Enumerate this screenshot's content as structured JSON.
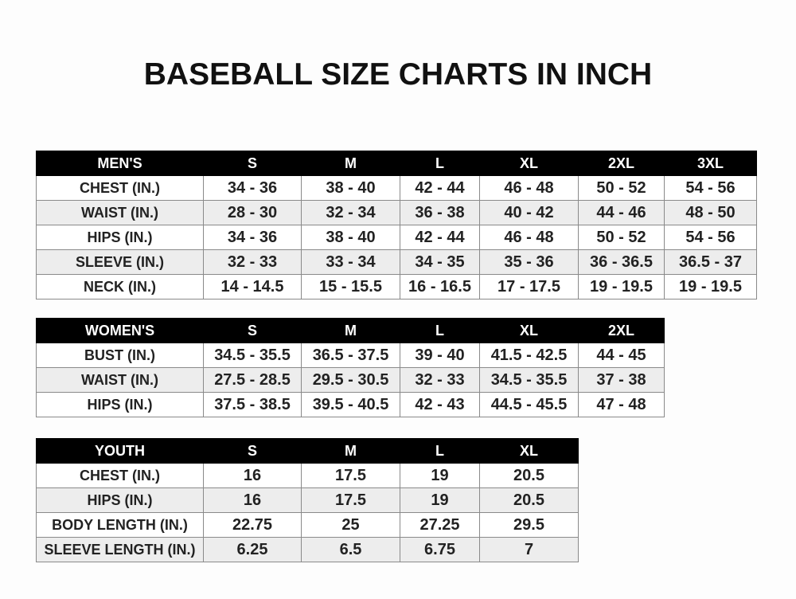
{
  "title": "BASEBALL SIZE CHARTS IN INCH",
  "tables": [
    {
      "header": [
        "MEN'S",
        "S",
        "M",
        "L",
        "XL",
        "2XL",
        "3XL"
      ],
      "rows": [
        [
          "CHEST (IN.)",
          "34 - 36",
          "38 - 40",
          "42 - 44",
          "46 - 48",
          "50 - 52",
          "54 - 56"
        ],
        [
          "WAIST (IN.)",
          "28 - 30",
          "32 - 34",
          "36 - 38",
          "40 - 42",
          "44 - 46",
          "48 - 50"
        ],
        [
          "HIPS (IN.)",
          "34 - 36",
          "38 - 40",
          "42 - 44",
          "46 - 48",
          "50 - 52",
          "54 - 56"
        ],
        [
          "SLEEVE (IN.)",
          "32 - 33",
          "33 - 34",
          "34 - 35",
          "35 - 36",
          "36 - 36.5",
          "36.5 - 37"
        ],
        [
          "NECK (IN.)",
          "14 - 14.5",
          "15 - 15.5",
          "16 - 16.5",
          "17 - 17.5",
          "19 - 19.5",
          "19 - 19.5"
        ]
      ]
    },
    {
      "header": [
        "WOMEN'S",
        "S",
        "M",
        "L",
        "XL",
        "2XL"
      ],
      "rows": [
        [
          "BUST (IN.)",
          "34.5 - 35.5",
          "36.5 - 37.5",
          "39 - 40",
          "41.5 - 42.5",
          "44 - 45"
        ],
        [
          "WAIST (IN.)",
          "27.5 - 28.5",
          "29.5 - 30.5",
          "32 - 33",
          "34.5 - 35.5",
          "37 - 38"
        ],
        [
          "HIPS (IN.)",
          "37.5 - 38.5",
          "39.5 - 40.5",
          "42 - 43",
          "44.5 - 45.5",
          "47 - 48"
        ]
      ]
    },
    {
      "header": [
        "YOUTH",
        "S",
        "M",
        "L",
        "XL"
      ],
      "rows": [
        [
          "CHEST (IN.)",
          "16",
          "17.5",
          "19",
          "20.5"
        ],
        [
          "HIPS (IN.)",
          "16",
          "17.5",
          "19",
          "20.5"
        ],
        [
          "BODY LENGTH (IN.)",
          "22.75",
          "25",
          "27.25",
          "29.5"
        ],
        [
          "SLEEVE LENGTH (IN.)",
          "6.25",
          "6.5",
          "6.75",
          "7"
        ]
      ]
    }
  ]
}
